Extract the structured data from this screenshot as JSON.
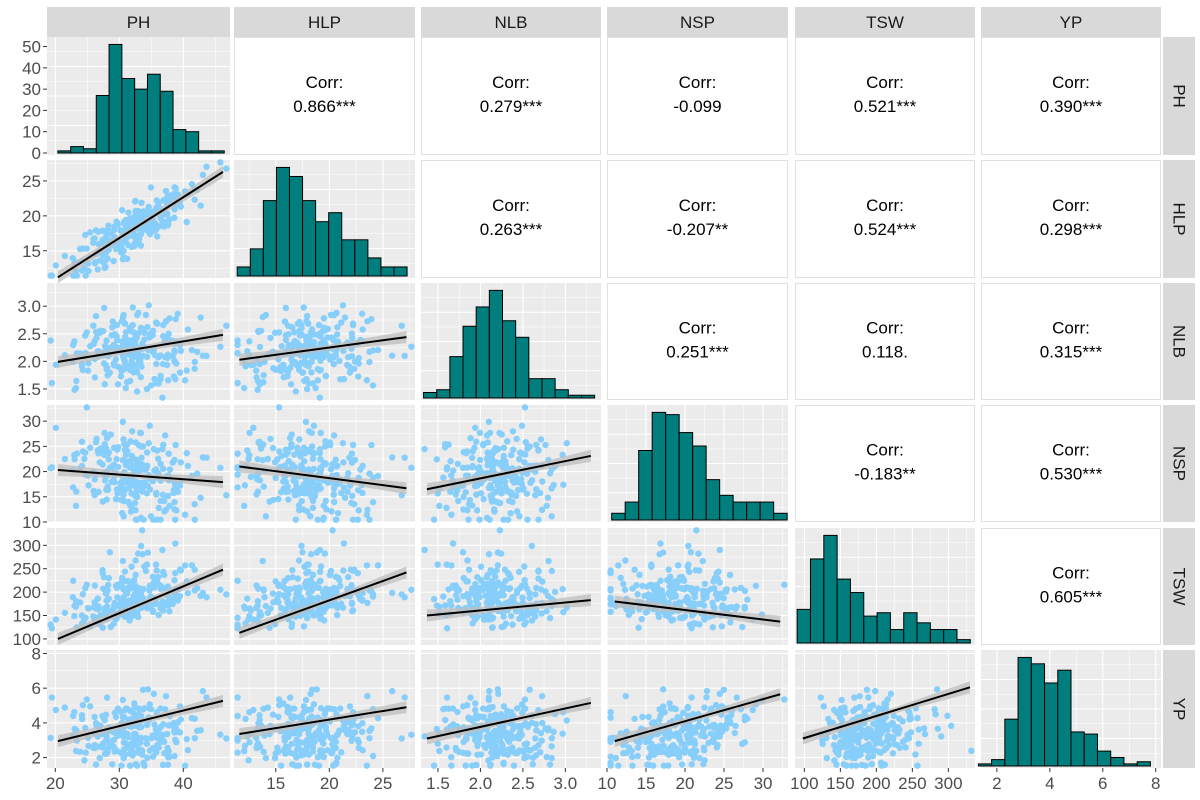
{
  "chart_data": {
    "type": "scatter-matrix",
    "title": "",
    "variables": [
      "PH",
      "HLP",
      "NLB",
      "NSP",
      "TSW",
      "YP"
    ],
    "strip_labels_top": [
      "PH",
      "HLP",
      "NLB",
      "NSP",
      "TSW",
      "YP"
    ],
    "strip_labels_right": [
      "PH",
      "HLP",
      "NLB",
      "NSP",
      "TSW",
      "YP"
    ],
    "corr_label": "Corr:",
    "correlations": [
      {
        "row": "PH",
        "col": "HLP",
        "value": "0.866***"
      },
      {
        "row": "PH",
        "col": "NLB",
        "value": "0.279***"
      },
      {
        "row": "PH",
        "col": "NSP",
        "value": "-0.099"
      },
      {
        "row": "PH",
        "col": "TSW",
        "value": "0.521***"
      },
      {
        "row": "PH",
        "col": "YP",
        "value": "0.390***"
      },
      {
        "row": "HLP",
        "col": "NLB",
        "value": "0.263***"
      },
      {
        "row": "HLP",
        "col": "NSP",
        "value": "-0.207**"
      },
      {
        "row": "HLP",
        "col": "TSW",
        "value": "0.524***"
      },
      {
        "row": "HLP",
        "col": "YP",
        "value": "0.298***"
      },
      {
        "row": "NLB",
        "col": "NSP",
        "value": "0.251***"
      },
      {
        "row": "NLB",
        "col": "TSW",
        "value": "0.118."
      },
      {
        "row": "NLB",
        "col": "YP",
        "value": "0.315***"
      },
      {
        "row": "NSP",
        "col": "TSW",
        "value": "-0.183**"
      },
      {
        "row": "NSP",
        "col": "YP",
        "value": "0.530***"
      },
      {
        "row": "TSW",
        "col": "YP",
        "value": "0.605***"
      }
    ],
    "ranges": {
      "PH": [
        18.7,
        47.3
      ],
      "HLP": [
        11.1,
        28.0
      ],
      "NLB": [
        1.3,
        3.42
      ],
      "NSP": [
        10.0,
        33.2
      ],
      "TSW": [
        87,
        337
      ],
      "YP": [
        1.4,
        8.2
      ]
    },
    "axis_ticks": {
      "PH": [
        20,
        30,
        40
      ],
      "HLP": [
        15,
        20,
        25
      ],
      "NLB": [
        1.5,
        2.0,
        2.5,
        3.0
      ],
      "NSP": [
        10,
        15,
        20,
        25,
        30
      ],
      "TSW": [
        100,
        150,
        200,
        250,
        300
      ],
      "YP": [
        2,
        4,
        6,
        8
      ]
    },
    "axis_tick_labels": {
      "PH": [
        "20",
        "30",
        "40"
      ],
      "HLP": [
        "15",
        "20",
        "25"
      ],
      "NLB": [
        "1.5",
        "2.0",
        "2.5",
        "3.0"
      ],
      "NSP": [
        "10",
        "15",
        "20",
        "25",
        "30"
      ],
      "TSW": [
        "100",
        "150",
        "200",
        "250",
        "300"
      ],
      "YP": [
        "2",
        "4",
        "6",
        "8"
      ]
    },
    "left_axis_first_row_ticks": [
      0,
      10,
      20,
      30,
      40,
      50
    ],
    "left_axis_first_row_tick_labels": [
      "0",
      "10",
      "20",
      "30",
      "40",
      "50"
    ],
    "histograms": {
      "PH": {
        "bin_start": 20.4,
        "bin_width": 2.0,
        "counts": [
          1,
          3,
          2,
          27,
          51,
          35,
          30,
          37,
          29,
          11,
          10,
          1,
          1
        ]
      },
      "HLP": {
        "bin_start": 11.4,
        "bin_width": 1.22,
        "counts": [
          3,
          9,
          25,
          36,
          33,
          25,
          18,
          21,
          12,
          12,
          6,
          3,
          3
        ]
      },
      "NLB": {
        "bin_start": 1.33,
        "bin_width": 0.155,
        "counts": [
          2,
          3,
          15,
          26,
          33,
          39,
          28,
          22,
          7,
          7,
          3,
          1,
          1
        ]
      },
      "NSP": {
        "bin_start": 10.6,
        "bin_width": 1.73,
        "counts": [
          3,
          8,
          31,
          48,
          47,
          39,
          33,
          18,
          11,
          8,
          8,
          8,
          3
        ]
      },
      "TSW": {
        "bin_start": 90,
        "bin_width": 18.5,
        "counts": [
          10,
          25,
          32,
          19,
          15,
          8,
          9,
          4,
          9,
          6,
          4,
          4,
          1
        ]
      },
      "YP": {
        "bin_start": 1.3,
        "bin_width": 0.5,
        "counts": [
          1,
          3,
          22,
          51,
          48,
          39,
          45,
          16,
          15,
          7,
          4,
          1,
          2
        ]
      }
    },
    "regression_lines": [
      {
        "x": "PH",
        "y": "HLP",
        "y_at_xmin": 11.2,
        "y_at_xmax": 26.3,
        "x_range": [
          20.4,
          46.2
        ]
      },
      {
        "x": "PH",
        "y": "NLB",
        "y_at_xmin": 1.99,
        "y_at_xmax": 2.48,
        "x_range": [
          20.4,
          46.2
        ]
      },
      {
        "x": "HLP",
        "y": "NLB",
        "y_at_xmin": 2.03,
        "y_at_xmax": 2.44,
        "x_range": [
          11.6,
          27.2
        ]
      },
      {
        "x": "PH",
        "y": "NSP",
        "y_at_xmin": 20.3,
        "y_at_xmax": 17.9,
        "x_range": [
          20.4,
          46.2
        ]
      },
      {
        "x": "HLP",
        "y": "NSP",
        "y_at_xmin": 21.0,
        "y_at_xmax": 16.7,
        "x_range": [
          11.6,
          27.2
        ]
      },
      {
        "x": "NLB",
        "y": "NSP",
        "y_at_xmin": 16.5,
        "y_at_xmax": 23.1,
        "x_range": [
          1.37,
          3.3
        ]
      },
      {
        "x": "PH",
        "y": "TSW",
        "y_at_xmin": 100,
        "y_at_xmax": 248,
        "x_range": [
          20.4,
          46.2
        ]
      },
      {
        "x": "HLP",
        "y": "TSW",
        "y_at_xmin": 113,
        "y_at_xmax": 242,
        "x_range": [
          11.6,
          27.2
        ]
      },
      {
        "x": "NLB",
        "y": "TSW",
        "y_at_xmin": 150,
        "y_at_xmax": 183,
        "x_range": [
          1.37,
          3.3
        ]
      },
      {
        "x": "NSP",
        "y": "TSW",
        "y_at_xmin": 180,
        "y_at_xmax": 137,
        "x_range": [
          11.0,
          32.2
        ]
      },
      {
        "x": "PH",
        "y": "YP",
        "y_at_xmin": 2.95,
        "y_at_xmax": 5.27,
        "x_range": [
          20.4,
          46.2
        ]
      },
      {
        "x": "HLP",
        "y": "YP",
        "y_at_xmin": 3.36,
        "y_at_xmax": 4.9,
        "x_range": [
          11.6,
          27.2
        ]
      },
      {
        "x": "NLB",
        "y": "YP",
        "y_at_xmin": 3.1,
        "y_at_xmax": 5.15,
        "x_range": [
          1.37,
          3.3
        ]
      },
      {
        "x": "NSP",
        "y": "YP",
        "y_at_xmin": 2.95,
        "y_at_xmax": 5.65,
        "x_range": [
          11.0,
          32.2
        ]
      },
      {
        "x": "TSW",
        "y": "YP",
        "y_at_xmin": 3.1,
        "y_at_xmax": 6.05,
        "x_range": [
          98,
          330
        ]
      }
    ],
    "n_observations_approx": 240,
    "colors": {
      "histogram_fill": "#007D7D",
      "point": "#87CEFA",
      "regression_line": "#000000",
      "confidence_band": "#BEBEBE",
      "panel_bg": "#EBEBEB",
      "strip_bg": "#D9D9D9",
      "grid": "#FFFFFF"
    },
    "grid": true,
    "legend": "none"
  }
}
